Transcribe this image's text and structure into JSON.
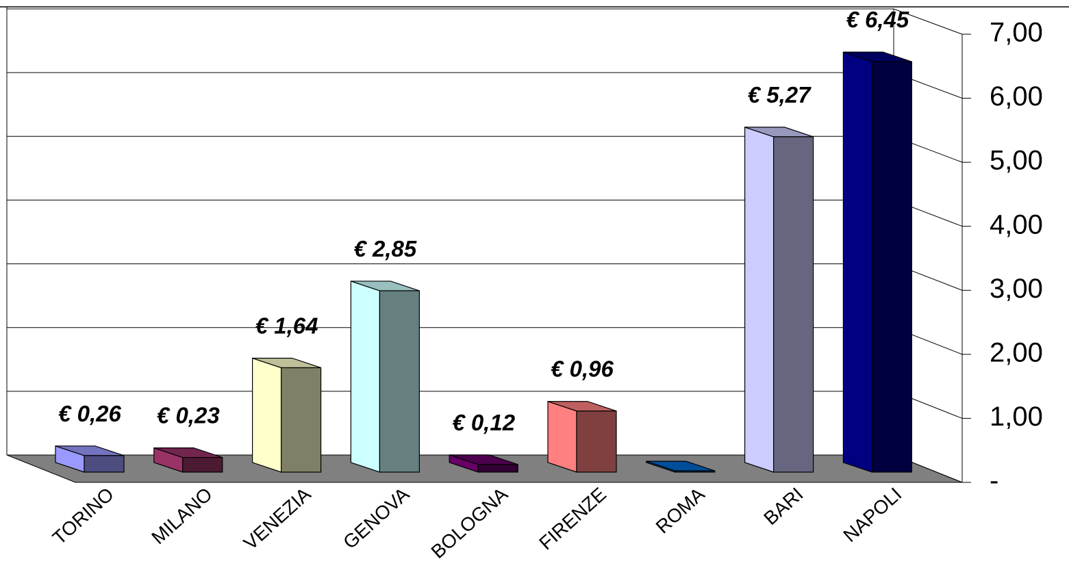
{
  "chart_data": {
    "type": "bar3d",
    "categories": [
      "TORINO",
      "MILANO",
      "VENEZIA",
      "GENOVA",
      "BOLOGNA",
      "FIRENZE",
      "ROMA",
      "BARI",
      "NAPOLI"
    ],
    "values": [
      0.26,
      0.23,
      1.64,
      2.85,
      0.12,
      0.96,
      0.02,
      5.27,
      6.45
    ],
    "value_labels": [
      "€ 0,26",
      "€ 0,23",
      "€ 1,64",
      "€ 2,85",
      "€ 0,12",
      "€ 0,96",
      null,
      "€ 5,27",
      "€ 6,45"
    ],
    "colors": [
      "#9999ff",
      "#993366",
      "#ffffcc",
      "#ccffff",
      "#660066",
      "#ff8080",
      "#0066cc",
      "#ccccff",
      "#000080"
    ],
    "ylim": [
      0,
      7
    ],
    "yticks": [
      {
        "value": 0,
        "label": "-"
      },
      {
        "value": 1,
        "label": "1,00"
      },
      {
        "value": 2,
        "label": "2,00"
      },
      {
        "value": 3,
        "label": "3,00"
      },
      {
        "value": 4,
        "label": "4,00"
      },
      {
        "value": 5,
        "label": "5,00"
      },
      {
        "value": 6,
        "label": "6,00"
      },
      {
        "value": 7,
        "label": "7,00"
      }
    ],
    "grid": true
  }
}
